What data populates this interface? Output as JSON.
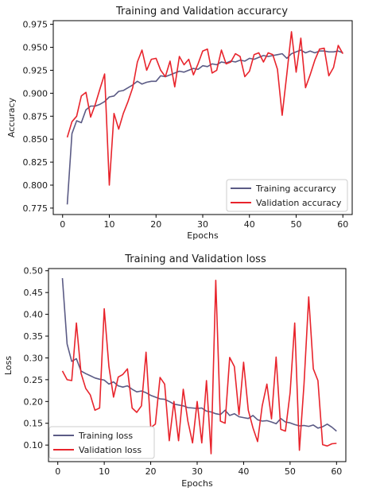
{
  "chart_data": [
    {
      "type": "line",
      "title": "Training and Validation accurarcy",
      "xlabel": "Epochs",
      "ylabel": "Accuracy",
      "xlim": [
        -2,
        62
      ],
      "ylim": [
        0.768,
        0.979
      ],
      "xticks": [
        0,
        10,
        20,
        30,
        40,
        50,
        60
      ],
      "yticks": [
        0.775,
        0.8,
        0.825,
        0.85,
        0.875,
        0.9,
        0.925,
        0.95,
        0.975
      ],
      "ytick_labels": [
        "0.775",
        "0.800",
        "0.825",
        "0.850",
        "0.875",
        "0.900",
        "0.925",
        "0.950",
        "0.975"
      ],
      "grid": false,
      "legend_position": "lower right",
      "series": [
        {
          "name": "Training accurarcy",
          "color": "#5b5b85",
          "x": [
            1,
            2,
            3,
            4,
            5,
            6,
            7,
            8,
            9,
            10,
            11,
            12,
            13,
            14,
            15,
            16,
            17,
            18,
            19,
            20,
            21,
            22,
            23,
            24,
            25,
            26,
            27,
            28,
            29,
            30,
            31,
            32,
            33,
            34,
            35,
            36,
            37,
            38,
            39,
            40,
            41,
            42,
            43,
            44,
            45,
            46,
            47,
            48,
            49,
            50,
            51,
            52,
            53,
            54,
            55,
            56,
            57,
            58,
            59,
            60
          ],
          "values": [
            0.779,
            0.856,
            0.87,
            0.868,
            0.882,
            0.886,
            0.886,
            0.888,
            0.891,
            0.896,
            0.897,
            0.902,
            0.903,
            0.906,
            0.909,
            0.913,
            0.91,
            0.912,
            0.913,
            0.913,
            0.919,
            0.918,
            0.92,
            0.922,
            0.924,
            0.923,
            0.925,
            0.927,
            0.926,
            0.93,
            0.929,
            0.932,
            0.931,
            0.934,
            0.933,
            0.935,
            0.934,
            0.936,
            0.935,
            0.938,
            0.937,
            0.939,
            0.941,
            0.94,
            0.941,
            0.942,
            0.943,
            0.938,
            0.943,
            0.945,
            0.947,
            0.944,
            0.946,
            0.944,
            0.946,
            0.946,
            0.945,
            0.945,
            0.946,
            0.944
          ]
        },
        {
          "name": "Validation accuracy",
          "color": "#e8242c",
          "x": [
            1,
            2,
            3,
            4,
            5,
            6,
            7,
            8,
            9,
            10,
            11,
            12,
            13,
            14,
            15,
            16,
            17,
            18,
            19,
            20,
            21,
            22,
            23,
            24,
            25,
            26,
            27,
            28,
            29,
            30,
            31,
            32,
            33,
            34,
            35,
            36,
            37,
            38,
            39,
            40,
            41,
            42,
            43,
            44,
            45,
            46,
            47,
            48,
            49,
            50,
            51,
            52,
            53,
            54,
            55,
            56,
            57,
            58,
            59,
            60
          ],
          "values": [
            0.852,
            0.869,
            0.875,
            0.897,
            0.901,
            0.874,
            0.888,
            0.905,
            0.921,
            0.8,
            0.878,
            0.861,
            0.878,
            0.891,
            0.906,
            0.934,
            0.947,
            0.925,
            0.937,
            0.938,
            0.925,
            0.918,
            0.935,
            0.907,
            0.94,
            0.931,
            0.937,
            0.92,
            0.932,
            0.946,
            0.948,
            0.922,
            0.925,
            0.947,
            0.932,
            0.934,
            0.943,
            0.94,
            0.918,
            0.924,
            0.942,
            0.944,
            0.934,
            0.944,
            0.942,
            0.926,
            0.876,
            0.921,
            0.967,
            0.923,
            0.96,
            0.906,
            0.92,
            0.936,
            0.948,
            0.949,
            0.919,
            0.928,
            0.952,
            0.943
          ]
        }
      ]
    },
    {
      "type": "line",
      "title": "Training and Validation loss",
      "xlabel": "Epochs",
      "ylabel": "Loss",
      "xlim": [
        -2,
        62
      ],
      "ylim": [
        0.062,
        0.505
      ],
      "xticks": [
        0,
        10,
        20,
        30,
        40,
        50,
        60
      ],
      "yticks": [
        0.1,
        0.15,
        0.2,
        0.25,
        0.3,
        0.35,
        0.4,
        0.45,
        0.5
      ],
      "ytick_labels": [
        "0.10",
        "0.15",
        "0.20",
        "0.25",
        "0.30",
        "0.35",
        "0.40",
        "0.45",
        "0.50"
      ],
      "grid": false,
      "legend_position": "lower left",
      "series": [
        {
          "name": "Training loss",
          "color": "#5b5b85",
          "x": [
            1,
            2,
            3,
            4,
            5,
            6,
            7,
            8,
            9,
            10,
            11,
            12,
            13,
            14,
            15,
            16,
            17,
            18,
            19,
            20,
            21,
            22,
            23,
            24,
            25,
            26,
            27,
            28,
            29,
            30,
            31,
            32,
            33,
            34,
            35,
            36,
            37,
            38,
            39,
            40,
            41,
            42,
            43,
            44,
            45,
            46,
            47,
            48,
            49,
            50,
            51,
            52,
            53,
            54,
            55,
            56,
            57,
            58,
            59,
            60
          ],
          "values": [
            0.483,
            0.332,
            0.292,
            0.298,
            0.27,
            0.264,
            0.259,
            0.254,
            0.251,
            0.249,
            0.24,
            0.245,
            0.236,
            0.233,
            0.236,
            0.228,
            0.222,
            0.224,
            0.22,
            0.214,
            0.21,
            0.206,
            0.205,
            0.2,
            0.194,
            0.192,
            0.19,
            0.186,
            0.185,
            0.184,
            0.185,
            0.178,
            0.176,
            0.172,
            0.17,
            0.18,
            0.168,
            0.172,
            0.165,
            0.163,
            0.161,
            0.168,
            0.158,
            0.155,
            0.156,
            0.153,
            0.149,
            0.161,
            0.153,
            0.151,
            0.147,
            0.144,
            0.145,
            0.143,
            0.146,
            0.139,
            0.142,
            0.148,
            0.141,
            0.132
          ]
        },
        {
          "name": "Validation loss",
          "color": "#e8242c",
          "x": [
            1,
            2,
            3,
            4,
            5,
            6,
            7,
            8,
            9,
            10,
            11,
            12,
            13,
            14,
            15,
            16,
            17,
            18,
            19,
            20,
            21,
            22,
            23,
            24,
            25,
            26,
            27,
            28,
            29,
            30,
            31,
            32,
            33,
            34,
            35,
            36,
            37,
            38,
            39,
            40,
            41,
            42,
            43,
            44,
            45,
            46,
            47,
            48,
            49,
            50,
            51,
            52,
            53,
            54,
            55,
            56,
            57,
            58,
            59,
            60
          ],
          "values": [
            0.27,
            0.25,
            0.248,
            0.38,
            0.265,
            0.23,
            0.215,
            0.18,
            0.185,
            0.413,
            0.28,
            0.21,
            0.256,
            0.262,
            0.275,
            0.185,
            0.175,
            0.19,
            0.313,
            0.14,
            0.148,
            0.255,
            0.24,
            0.11,
            0.2,
            0.11,
            0.228,
            0.155,
            0.105,
            0.2,
            0.105,
            0.248,
            0.08,
            0.478,
            0.155,
            0.15,
            0.301,
            0.28,
            0.17,
            0.29,
            0.18,
            0.14,
            0.108,
            0.19,
            0.24,
            0.16,
            0.302,
            0.136,
            0.132,
            0.22,
            0.38,
            0.088,
            0.24,
            0.44,
            0.275,
            0.248,
            0.101,
            0.098,
            0.103,
            0.104
          ]
        }
      ]
    }
  ]
}
